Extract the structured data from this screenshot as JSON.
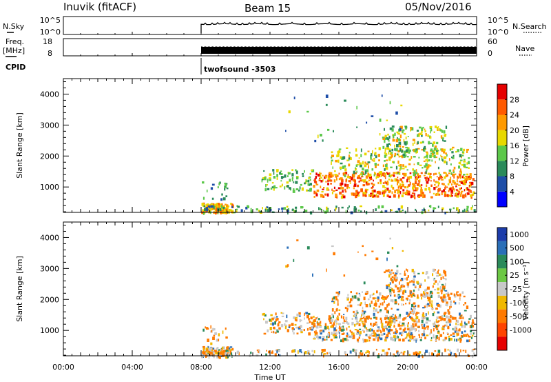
{
  "header": {
    "radar": "Inuvik (fitACF)",
    "beam": "Beam 15",
    "date": "05/Nov/2016"
  },
  "top_panels": {
    "nsky_label": "N.Sky",
    "nsearch_label": "N.Search",
    "freq_label_line1": "Freq.",
    "freq_label_line2": "[MHz]",
    "nave_label": "Nave",
    "cpid_label": "CPID",
    "cpid_value": "twofsound -3503",
    "noise_ticks_left": [
      "10^5",
      "10^0"
    ],
    "noise_ticks_right": [
      "10^5",
      "10^0"
    ],
    "freq_ticks": [
      "18",
      "8"
    ],
    "nave_ticks": [
      "60",
      "0"
    ],
    "data_start_hour": 8
  },
  "time_axis": {
    "label": "Time UT",
    "ticks": [
      "00:00",
      "04:00",
      "08:00",
      "12:00",
      "16:00",
      "20:00",
      "00:00"
    ],
    "range_hours": [
      0,
      24
    ]
  },
  "chart_data": [
    {
      "type": "heatmap",
      "name": "power",
      "ylabel": "Slant Range [km]",
      "yticks": [
        "1000",
        "2000",
        "3000",
        "4000"
      ],
      "ylim": [
        180,
        4500
      ],
      "colorbar": {
        "label": "Power [dB]",
        "levels": [
          "4",
          "8",
          "12",
          "16",
          "20",
          "24",
          "28"
        ],
        "colors": [
          "#0000ff",
          "#1e4ea8",
          "#2a8a5a",
          "#5cc84a",
          "#e8d800",
          "#ff9a00",
          "#ff5a00",
          "#e60000"
        ]
      }
    },
    {
      "type": "heatmap",
      "name": "velocity",
      "ylabel": "Slant Range [km]",
      "yticks": [
        "1000",
        "2000",
        "3000",
        "4000"
      ],
      "ylim": [
        180,
        4500
      ],
      "colorbar": {
        "label": "Velocity [m s⁻¹]",
        "levels": [
          "1000",
          "500",
          "100",
          "25",
          "-25",
          "-100",
          "-500",
          "-1000"
        ],
        "colors": [
          "#1c3caa",
          "#2a6fb8",
          "#2a8a5a",
          "#6cc844",
          "#c8c8c8",
          "#f0b800",
          "#ff7a00",
          "#ff4400",
          "#e60000"
        ]
      }
    }
  ]
}
